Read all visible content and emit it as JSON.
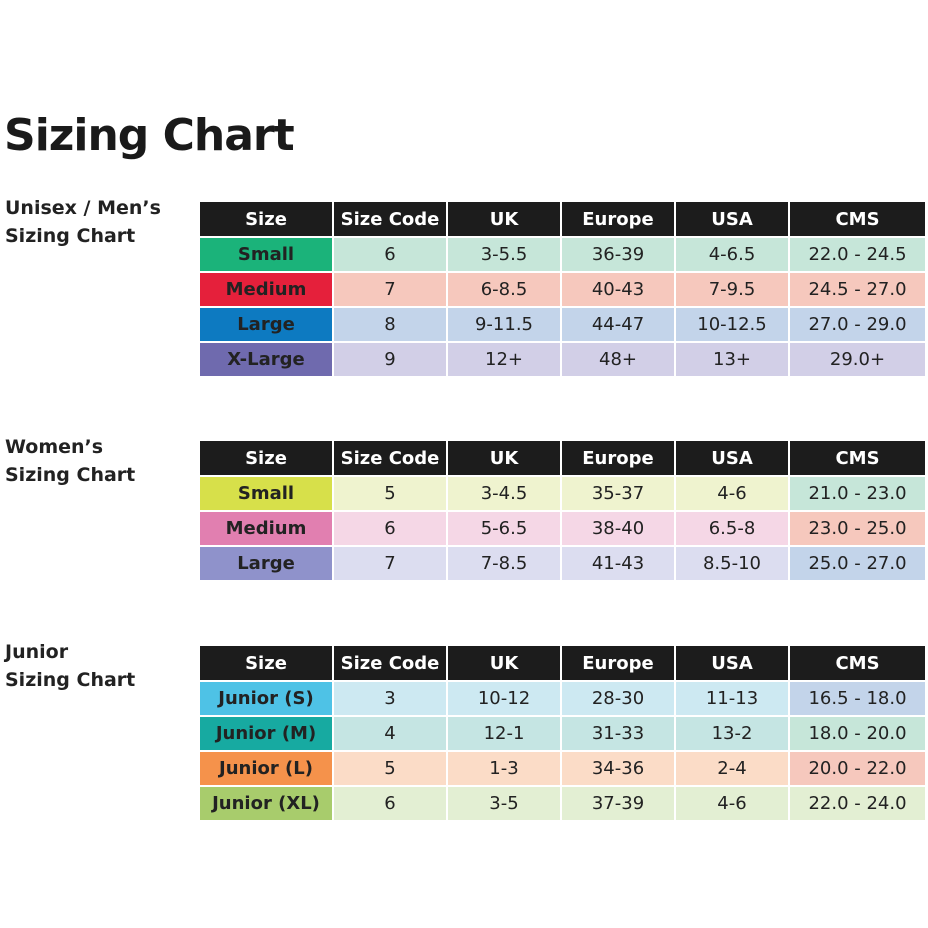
{
  "title": "Sizing Chart",
  "sections": [
    {
      "label": [
        "Unisex / Men’s",
        "Sizing Chart"
      ],
      "header": [
        "Size",
        "Size Code",
        "UK",
        "Europe",
        "USA",
        "CMS"
      ],
      "rows": [
        [
          "Small",
          "6",
          "3-5.5",
          "36-39",
          "4-6.5",
          "22.0 - 24.5"
        ],
        [
          "Medium",
          "7",
          "6-8.5",
          "40-43",
          "7-9.5",
          "24.5 - 27.0"
        ],
        [
          "Large",
          "8",
          "9-11.5",
          "44-47",
          "10-12.5",
          "27.0 - 29.0"
        ],
        [
          "X-Large",
          "9",
          "12+",
          "48+",
          "13+",
          "29.0+"
        ]
      ]
    },
    {
      "label": [
        "Women’s",
        "Sizing Chart"
      ],
      "header": [
        "Size",
        "Size Code",
        "UK",
        "Europe",
        "USA",
        "CMS"
      ],
      "rows": [
        [
          "Small",
          "5",
          "3-4.5",
          "35-37",
          "4-6",
          "21.0 - 23.0"
        ],
        [
          "Medium",
          "6",
          "5-6.5",
          "38-40",
          "6.5-8",
          "23.0 - 25.0"
        ],
        [
          "Large",
          "7",
          "7-8.5",
          "41-43",
          "8.5-10",
          "25.0 - 27.0"
        ]
      ]
    },
    {
      "label": [
        "Junior",
        "Sizing Chart"
      ],
      "header": [
        "Size",
        "Size Code",
        "UK",
        "Europe",
        "USA",
        "CMS"
      ],
      "rows": [
        [
          "Junior (S)",
          "3",
          "10-12",
          "28-30",
          "11-13",
          "16.5 - 18.0"
        ],
        [
          "Junior (M)",
          "4",
          "12-1",
          "31-33",
          "13-2",
          "18.0 - 20.0"
        ],
        [
          "Junior (L)",
          "5",
          "1-3",
          "34-36",
          "2-4",
          "20.0 - 22.0"
        ],
        [
          "Junior (XL)",
          "6",
          "3-5",
          "37-39",
          "4-6",
          "22.0 - 24.0"
        ]
      ]
    }
  ]
}
